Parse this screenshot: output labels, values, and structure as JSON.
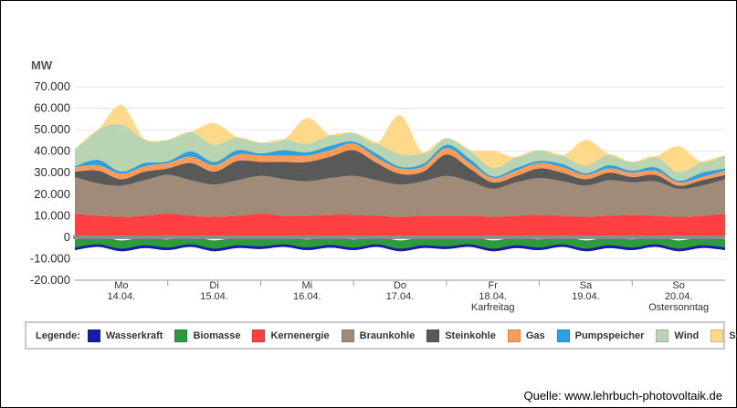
{
  "chart_data": {
    "type": "area",
    "ylabel": "MW",
    "yticks": [
      "70.000",
      "60.000",
      "50.000",
      "40.000",
      "30.000",
      "20.000",
      "10.000",
      "0",
      "-10.000",
      "-20.000"
    ],
    "ylim": [
      -20000,
      70000
    ],
    "day_labels": [
      {
        "day": "Mo",
        "date": "14.04.",
        "note": ""
      },
      {
        "day": "Di",
        "date": "15.04.",
        "note": ""
      },
      {
        "day": "Mi",
        "date": "16.04.",
        "note": ""
      },
      {
        "day": "Do",
        "date": "17.04.",
        "note": ""
      },
      {
        "day": "Fr",
        "date": "18.04.",
        "note": "Karfreitag"
      },
      {
        "day": "Sa",
        "date": "19.04.",
        "note": ""
      },
      {
        "day": "So",
        "date": "20.04.",
        "note": "Ostersonntag"
      }
    ],
    "x_hours": [
      0,
      6,
      12,
      18,
      24,
      30,
      36,
      42,
      48,
      54,
      60,
      66,
      72,
      78,
      84,
      90,
      96,
      102,
      108,
      114,
      120,
      126,
      132,
      138,
      144,
      150,
      156,
      162,
      168
    ],
    "series": [
      {
        "name": "Wasserkraft",
        "color": "#1a1aa8",
        "values": [
          -6000,
          -4500,
          -6500,
          -5000,
          -6000,
          -4500,
          -6500,
          -5000,
          -5500,
          -4500,
          -6000,
          -4800,
          -6000,
          -4500,
          -6500,
          -5000,
          -5500,
          -4500,
          -6500,
          -5000,
          -6000,
          -4500,
          -6500,
          -5000,
          -6000,
          -4500,
          -6500,
          -5000,
          -6000
        ]
      },
      {
        "name": "Biomasse",
        "color": "#2e9a3e",
        "values": [
          5000,
          5000,
          5000,
          5000,
          5000,
          5000,
          5000,
          5000,
          5000,
          5000,
          5000,
          5000,
          5000,
          5000,
          5000,
          5000,
          5000,
          5000,
          5000,
          5000,
          5000,
          5000,
          5000,
          5000,
          5000,
          5000,
          5000,
          5000,
          5000
        ]
      },
      {
        "name": "Kernenergie",
        "color": "#ff4040",
        "values": [
          11000,
          10000,
          9500,
          10000,
          11000,
          10000,
          9500,
          10000,
          11000,
          10000,
          10000,
          10500,
          10500,
          10000,
          9500,
          10000,
          10000,
          10000,
          9500,
          10000,
          10500,
          10000,
          9500,
          10000,
          10500,
          10000,
          9500,
          10000,
          11000
        ]
      },
      {
        "name": "Braunkohle",
        "color": "#a08a78",
        "values": [
          17000,
          15000,
          14500,
          16500,
          18000,
          16500,
          15000,
          16500,
          17500,
          17000,
          16000,
          17000,
          18000,
          16500,
          15000,
          16000,
          18500,
          16000,
          13000,
          15500,
          17000,
          16000,
          14500,
          16500,
          15000,
          16000,
          13000,
          14000,
          16000
        ]
      },
      {
        "name": "Steinkohle",
        "color": "#595959",
        "values": [
          2500,
          6000,
          3000,
          4000,
          3000,
          8000,
          6000,
          9000,
          6500,
          8000,
          9000,
          10000,
          12000,
          8000,
          5000,
          4500,
          10000,
          6000,
          3000,
          3000,
          4500,
          4000,
          3000,
          3500,
          2500,
          3000,
          1500,
          2500,
          2000
        ]
      },
      {
        "name": "Gas",
        "color": "#ff9a57",
        "values": [
          2000,
          2500,
          2500,
          2500,
          2500,
          3000,
          3000,
          3000,
          3000,
          3000,
          3000,
          3000,
          3000,
          2500,
          2500,
          2500,
          3000,
          2500,
          2000,
          2500,
          2500,
          2500,
          2000,
          2000,
          2000,
          2000,
          1500,
          1500,
          2000
        ]
      },
      {
        "name": "Pumpspeicher",
        "color": "#2aa1e0",
        "values": [
          500,
          2500,
          1000,
          1500,
          800,
          2500,
          1500,
          2000,
          1000,
          2500,
          1500,
          2000,
          1000,
          1800,
          800,
          1200,
          1500,
          2000,
          800,
          1200,
          1000,
          1500,
          800,
          1500,
          1000,
          1500,
          800,
          2000,
          1000
        ]
      },
      {
        "name": "Wind",
        "color": "#b8d4b0",
        "values": [
          8000,
          14000,
          22000,
          11000,
          10000,
          9000,
          8000,
          6000,
          5000,
          5000,
          4000,
          5000,
          4000,
          5000,
          6000,
          5000,
          3000,
          4000,
          4000,
          5000,
          5000,
          4000,
          3500,
          5000,
          4000,
          5000,
          4000,
          5000,
          6000
        ]
      },
      {
        "name": "Solar",
        "color": "#ffd98a",
        "values": [
          0,
          0,
          9000,
          0,
          0,
          0,
          10000,
          0,
          0,
          0,
          12000,
          0,
          0,
          0,
          18000,
          0,
          0,
          0,
          8000,
          0,
          0,
          0,
          12000,
          0,
          0,
          0,
          12000,
          0,
          0
        ]
      }
    ]
  },
  "source": "Quelle: www.lehrbuch-photovoltaik.de",
  "legend_title": "Legende:"
}
